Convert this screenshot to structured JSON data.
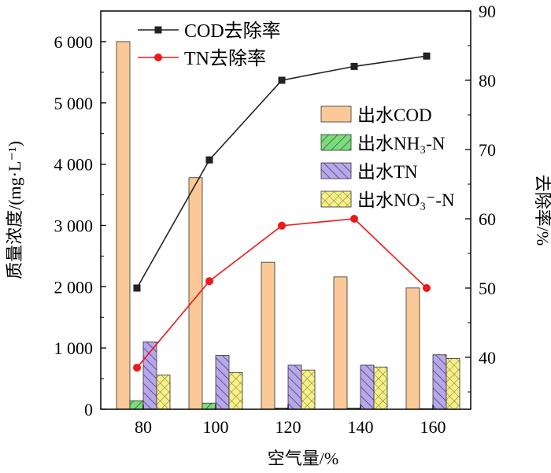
{
  "chart_data": {
    "type": "bar",
    "categories": [
      "80",
      "100",
      "120",
      "140",
      "160"
    ],
    "xlabel": "空气量/%",
    "ylabel": "质量浓度/(mg·L⁻¹)",
    "y2label": "去除率/%",
    "ylim": [
      0,
      6500
    ],
    "y2lim": [
      32.5,
      90
    ],
    "yticks": [
      "0",
      "1 000",
      "2 000",
      "3 000",
      "4 000",
      "5 000",
      "6 000"
    ],
    "y2ticks": [
      "40",
      "50",
      "60",
      "70",
      "80",
      "90"
    ],
    "legend_bars_position": "right-middle",
    "legend_lines_position": "top-left",
    "bar_series": [
      {
        "name": "出水COD",
        "values": [
          6000,
          3780,
          2400,
          2160,
          1980
        ],
        "color": "#FBC897",
        "pattern": "solid"
      },
      {
        "name": "出水NH₃-N",
        "values": [
          140,
          100,
          20,
          20,
          10
        ],
        "color": "#7DDA7D",
        "pattern": "diag-right"
      },
      {
        "name": "出水TN",
        "values": [
          1100,
          880,
          720,
          720,
          890
        ],
        "color": "#B7A8E8",
        "pattern": "diag-left"
      },
      {
        "name": "出水NO₃⁻-N",
        "values": [
          560,
          600,
          640,
          690,
          830
        ],
        "color": "#F6F08C",
        "pattern": "crosshatch"
      }
    ],
    "line_series": [
      {
        "name": "COD去除率",
        "values": [
          50,
          68.5,
          80,
          82,
          83.5
        ],
        "color": "#222222",
        "marker": "square"
      },
      {
        "name": "TN去除率",
        "values": [
          38.5,
          51,
          59,
          60,
          50
        ],
        "color": "#F01818",
        "marker": "circle"
      }
    ]
  }
}
